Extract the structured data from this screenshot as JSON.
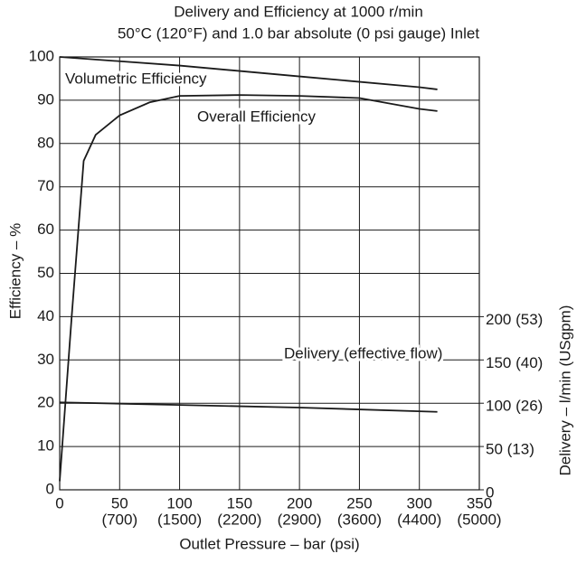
{
  "chart_data": {
    "type": "line",
    "title": "Delivery and Efficiency at 1000 r/min",
    "subtitle": "50°C (120°F) and 1.0 bar absolute (0 psi gauge) Inlet",
    "x_label": "Outlet Pressure – bar (psi)",
    "y_label": "Efficiency – %",
    "y2_label": "Delivery – l/min (USgpm)",
    "xlim": [
      0,
      350
    ],
    "xticks": [
      0,
      50,
      100,
      150,
      200,
      250,
      300,
      350
    ],
    "xtick_secondary_labels": [
      null,
      "(700)",
      "(1500)",
      "(2200)",
      "(2900)",
      "(3600)",
      "(4400)",
      "(5000)"
    ],
    "ylim": [
      0,
      100
    ],
    "yticks": [
      0,
      10,
      20,
      30,
      40,
      50,
      60,
      70,
      80,
      90,
      100
    ],
    "y2lim": [
      0,
      500
    ],
    "y2ticks": [
      0,
      {
        "value": 50,
        "label": "50 (13)"
      },
      {
        "value": 100,
        "label": "100 (26)"
      },
      {
        "value": 150,
        "label": "150 (40)"
      },
      {
        "value": 200,
        "label": "200 (53)"
      }
    ],
    "grid": true,
    "series": [
      {
        "name": "Volumetric Efficiency",
        "color": "#1a1a1a",
        "x": [
          0,
          100,
          200,
          300,
          315
        ],
        "values": [
          100,
          98,
          95.5,
          93,
          92.5
        ]
      },
      {
        "name": "Overall Efficiency",
        "color": "#1a1a1a",
        "x": [
          0,
          10,
          20,
          30,
          50,
          75,
          100,
          150,
          200,
          250,
          300,
          315
        ],
        "values": [
          2,
          40,
          76,
          82,
          86.5,
          89.5,
          91,
          91.2,
          91,
          90.5,
          88,
          87.5
        ]
      },
      {
        "name": "Delivery (effective flow)",
        "color": "#1a1a1a",
        "axis": "y2",
        "x": [
          0,
          100,
          200,
          315
        ],
        "values": [
          101,
          98,
          95,
          90
        ]
      }
    ]
  }
}
